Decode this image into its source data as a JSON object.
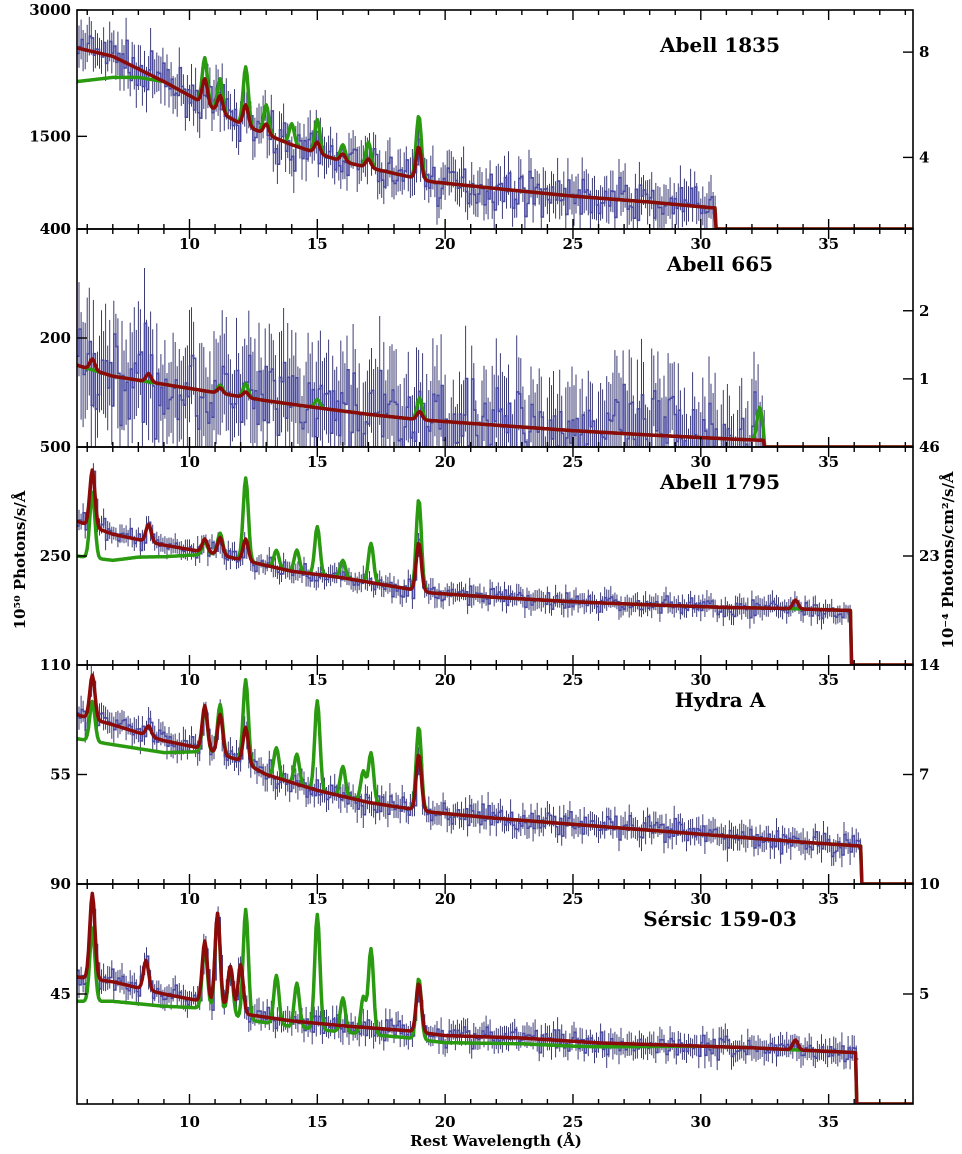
{
  "figure": {
    "xlabel": "Rest Wavelength (Å)",
    "ylabel_left": "10⁵⁰ Photons/s/Å",
    "ylabel_right": "10⁻⁴ Photons/cm²/s/Å",
    "colors": {
      "data": "#4a4aa0",
      "model_green": "#2a9a10",
      "model_red": "#8b0a0a"
    }
  },
  "chart_data": [
    {
      "type": "line",
      "title": "Abell 1835",
      "xlim": [
        5.6,
        38.3
      ],
      "ylim": [
        400,
        3000
      ],
      "left_ticks": [
        {
          "v": 3000,
          "label": "3000"
        },
        {
          "v": 1500,
          "label": "1500"
        },
        {
          "v": 400,
          "label": "400"
        }
      ],
      "right_ticks": [
        {
          "v": 2500,
          "label": "8"
        },
        {
          "v": 1250,
          "label": "4"
        }
      ],
      "x_ticks": [],
      "data_end": 30.6,
      "continuum": [
        [
          5.6,
          2550
        ],
        [
          7,
          2450
        ],
        [
          9,
          2150
        ],
        [
          10.5,
          1900
        ],
        [
          12,
          1650
        ],
        [
          14,
          1400
        ],
        [
          16,
          1200
        ],
        [
          18,
          1060
        ],
        [
          19.5,
          960
        ],
        [
          22,
          880
        ],
        [
          25,
          790
        ],
        [
          28,
          720
        ],
        [
          30.5,
          650
        ]
      ],
      "lines": [
        [
          10.6,
          300
        ],
        [
          11.2,
          200
        ],
        [
          12.2,
          250
        ],
        [
          13.0,
          120
        ],
        [
          15.0,
          130
        ],
        [
          16.0,
          90
        ],
        [
          17.0,
          100
        ],
        [
          18.97,
          380
        ]
      ],
      "green_lines": [
        [
          10.6,
          550
        ],
        [
          11.2,
          400
        ],
        [
          12.2,
          700
        ],
        [
          13.0,
          350
        ],
        [
          14.0,
          250
        ],
        [
          15.0,
          400
        ],
        [
          16.0,
          200
        ],
        [
          17.0,
          300
        ],
        [
          18.97,
          750
        ]
      ],
      "green_low": [
        [
          5.6,
          -400
        ],
        [
          7,
          -250
        ],
        [
          8,
          -100
        ],
        [
          9,
          0
        ]
      ],
      "noise": 200,
      "series": [
        {
          "name": ""
        }
      ]
    },
    {
      "type": "line",
      "title": "Abell 665",
      "xlim": [
        5.6,
        38.3
      ],
      "ylim": [
        0,
        400
      ],
      "left_ticks": [
        {
          "v": 400,
          "label": "400"
        },
        {
          "v": 200,
          "label": "200"
        }
      ],
      "right_ticks": [
        {
          "v": 250,
          "label": "2"
        },
        {
          "v": 125,
          "label": "1"
        }
      ],
      "x_ticks": [
        {
          "v": 10,
          "label": "10"
        },
        {
          "v": 15,
          "label": "15"
        },
        {
          "v": 20,
          "label": "20"
        },
        {
          "v": 25,
          "label": "25"
        },
        {
          "v": 30,
          "label": "30"
        },
        {
          "v": 35,
          "label": "35"
        }
      ],
      "data_end": 32.5,
      "continuum": [
        [
          5.6,
          150
        ],
        [
          7,
          130
        ],
        [
          9,
          115
        ],
        [
          11,
          100
        ],
        [
          13,
          85
        ],
        [
          15,
          72
        ],
        [
          17,
          60
        ],
        [
          19,
          50
        ],
        [
          22,
          40
        ],
        [
          25,
          30
        ],
        [
          28,
          22
        ],
        [
          31,
          15
        ],
        [
          32.5,
          12
        ]
      ],
      "lines": [
        [
          6.2,
          20
        ],
        [
          8.4,
          15
        ],
        [
          11.2,
          10
        ],
        [
          12.2,
          10
        ],
        [
          19,
          15
        ]
      ],
      "green_lines": [
        [
          11.2,
          15
        ],
        [
          12.2,
          25
        ],
        [
          15,
          15
        ],
        [
          19,
          40
        ],
        [
          32.3,
          60
        ]
      ],
      "green_low": [],
      "noise": 75,
      "series": [
        {
          "name": ""
        }
      ]
    },
    {
      "type": "line",
      "title": "Abell 1795",
      "xlim": [
        5.6,
        38.3
      ],
      "ylim": [
        0,
        500
      ],
      "left_ticks": [
        {
          "v": 500,
          "label": "500"
        },
        {
          "v": 250,
          "label": "250"
        }
      ],
      "right_ticks": [
        {
          "v": 500,
          "label": "46"
        },
        {
          "v": 250,
          "label": "23"
        }
      ],
      "x_ticks": [
        {
          "v": 10,
          "label": "10"
        },
        {
          "v": 15,
          "label": "15"
        },
        {
          "v": 20,
          "label": "20"
        },
        {
          "v": 25,
          "label": "25"
        },
        {
          "v": 30,
          "label": "30"
        },
        {
          "v": 35,
          "label": "35"
        }
      ],
      "data_end": 35.9,
      "continuum": [
        [
          5.6,
          330
        ],
        [
          7,
          300
        ],
        [
          9,
          275
        ],
        [
          11,
          255
        ],
        [
          12.5,
          235
        ],
        [
          14,
          215
        ],
        [
          16,
          200
        ],
        [
          18,
          180
        ],
        [
          19.5,
          165
        ],
        [
          22,
          155
        ],
        [
          25,
          145
        ],
        [
          28,
          138
        ],
        [
          31,
          132
        ],
        [
          33,
          130
        ],
        [
          35.9,
          125
        ]
      ],
      "lines": [
        [
          6.2,
          130
        ],
        [
          8.4,
          40
        ],
        [
          10.6,
          30
        ],
        [
          11.2,
          40
        ],
        [
          12.2,
          50
        ],
        [
          18.97,
          110
        ],
        [
          33.7,
          20
        ]
      ],
      "green_lines": [
        [
          6.2,
          150
        ],
        [
          10.6,
          30
        ],
        [
          11.2,
          50
        ],
        [
          12.2,
          190
        ],
        [
          13.4,
          40
        ],
        [
          14.2,
          50
        ],
        [
          15.0,
          110
        ],
        [
          16.0,
          40
        ],
        [
          17.1,
          90
        ],
        [
          18.97,
          210
        ]
      ],
      "green_low": [
        [
          5.6,
          -80
        ],
        [
          7,
          -60
        ],
        [
          8,
          -40
        ],
        [
          9.5,
          -20
        ],
        [
          11,
          0
        ]
      ],
      "noise": 18,
      "series": [
        {
          "name": ""
        }
      ]
    },
    {
      "type": "line",
      "title": "Hydra A",
      "xlim": [
        5.6,
        38.3
      ],
      "ylim": [
        0,
        110
      ],
      "left_ticks": [
        {
          "v": 110,
          "label": "110"
        },
        {
          "v": 55,
          "label": "55"
        }
      ],
      "right_ticks": [
        {
          "v": 110,
          "label": "14"
        },
        {
          "v": 55,
          "label": "7"
        }
      ],
      "x_ticks": [
        {
          "v": 10,
          "label": "10"
        },
        {
          "v": 15,
          "label": "15"
        },
        {
          "v": 20,
          "label": "20"
        },
        {
          "v": 25,
          "label": "25"
        },
        {
          "v": 30,
          "label": "30"
        },
        {
          "v": 35,
          "label": "35"
        }
      ],
      "data_end": 36.3,
      "continuum": [
        [
          5.6,
          85
        ],
        [
          7,
          80
        ],
        [
          9,
          72
        ],
        [
          10.5,
          68
        ],
        [
          12,
          62
        ],
        [
          13,
          55
        ],
        [
          15,
          47
        ],
        [
          17,
          41
        ],
        [
          19.5,
          36
        ],
        [
          22,
          33
        ],
        [
          25,
          30
        ],
        [
          28,
          27
        ],
        [
          31,
          24
        ],
        [
          34,
          21
        ],
        [
          36.3,
          19
        ]
      ],
      "lines": [
        [
          6.2,
          22
        ],
        [
          8.4,
          5
        ],
        [
          10.6,
          22
        ],
        [
          11.2,
          20
        ],
        [
          12.2,
          18
        ],
        [
          18.97,
          28
        ]
      ],
      "green_lines": [
        [
          6.2,
          20
        ],
        [
          10.6,
          22
        ],
        [
          11.2,
          25
        ],
        [
          12.2,
          42
        ],
        [
          13.4,
          15
        ],
        [
          14.2,
          15
        ],
        [
          15.0,
          45
        ],
        [
          16.0,
          15
        ],
        [
          16.8,
          15
        ],
        [
          17.1,
          25
        ],
        [
          18.97,
          42
        ]
      ],
      "green_low": [
        [
          5.6,
          -12
        ],
        [
          7,
          -10
        ],
        [
          9,
          -6
        ],
        [
          11,
          0
        ]
      ],
      "noise": 5,
      "series": [
        {
          "name": ""
        }
      ]
    },
    {
      "type": "line",
      "title": "Sérsic 159-03",
      "xlim": [
        5.6,
        38.3
      ],
      "ylim": [
        0,
        90
      ],
      "left_ticks": [
        {
          "v": 90,
          "label": "90"
        },
        {
          "v": 45,
          "label": "45"
        }
      ],
      "right_ticks": [
        {
          "v": 90,
          "label": "10"
        },
        {
          "v": 45,
          "label": "5"
        }
      ],
      "x_ticks": [
        {
          "v": 10,
          "label": "10"
        },
        {
          "v": 15,
          "label": "15"
        },
        {
          "v": 20,
          "label": "20"
        },
        {
          "v": 25,
          "label": "25"
        },
        {
          "v": 30,
          "label": "30"
        },
        {
          "v": 35,
          "label": "35"
        }
      ],
      "data_end": 36.1,
      "continuum": [
        [
          5.6,
          52
        ],
        [
          7,
          50
        ],
        [
          9,
          45
        ],
        [
          10.5,
          42
        ],
        [
          12,
          37
        ],
        [
          14,
          34
        ],
        [
          16,
          32
        ],
        [
          18.5,
          30
        ],
        [
          20,
          28
        ],
        [
          23,
          27
        ],
        [
          26,
          25
        ],
        [
          29,
          24
        ],
        [
          32,
          23
        ],
        [
          34,
          22
        ],
        [
          36.1,
          21
        ]
      ],
      "lines": [
        [
          6.2,
          35
        ],
        [
          8.3,
          12
        ],
        [
          10.6,
          25
        ],
        [
          11.1,
          38
        ],
        [
          11.6,
          18
        ],
        [
          12.0,
          20
        ],
        [
          18.97,
          20
        ],
        [
          33.7,
          4
        ]
      ],
      "green_lines": [
        [
          6.2,
          30
        ],
        [
          10.6,
          25
        ],
        [
          11.1,
          40
        ],
        [
          11.6,
          20
        ],
        [
          12.2,
          45
        ],
        [
          13.4,
          20
        ],
        [
          14.2,
          18
        ],
        [
          15.0,
          47
        ],
        [
          16.0,
          14
        ],
        [
          16.8,
          15
        ],
        [
          17.1,
          35
        ],
        [
          18.97,
          25
        ]
      ],
      "green_low": [
        [
          5.6,
          -10
        ],
        [
          7,
          -8
        ],
        [
          9,
          -5
        ],
        [
          11,
          -2
        ],
        [
          19.5,
          -3
        ],
        [
          25,
          -2
        ],
        [
          30,
          0
        ]
      ],
      "noise": 4,
      "series": [
        {
          "name": ""
        }
      ]
    }
  ]
}
